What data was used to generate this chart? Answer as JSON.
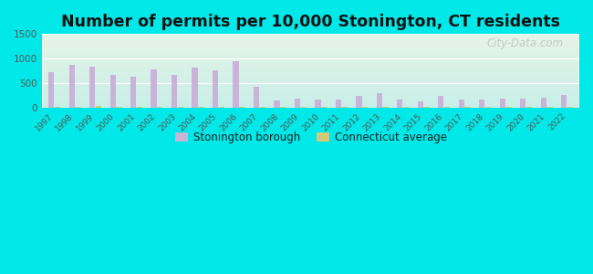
{
  "title": "Number of permits per 10,000 Stonington, CT residents",
  "years": [
    1997,
    1998,
    1999,
    2000,
    2001,
    2002,
    2003,
    2004,
    2005,
    2006,
    2007,
    2008,
    2009,
    2010,
    2011,
    2012,
    2013,
    2014,
    2015,
    2016,
    2017,
    2018,
    2019,
    2020,
    2021,
    2022
  ],
  "stonington_values": [
    730,
    870,
    840,
    660,
    620,
    770,
    660,
    820,
    760,
    950,
    430,
    140,
    185,
    170,
    170,
    240,
    300,
    160,
    120,
    240,
    165,
    165,
    175,
    185,
    200,
    255
  ],
  "ct_avg_values": [
    20,
    20,
    30,
    20,
    20,
    20,
    20,
    20,
    20,
    15,
    15,
    10,
    10,
    10,
    10,
    10,
    10,
    10,
    10,
    10,
    10,
    10,
    10,
    10,
    10,
    10
  ],
  "stonington_color": "#c9b3d9",
  "ct_avg_color": "#d4c97a",
  "ylim": [
    0,
    1500
  ],
  "yticks": [
    0,
    500,
    1000,
    1500
  ],
  "bg_color_outer": "#00e8e8",
  "bg_color_plot_top": "#e6f4e6",
  "bg_color_plot_bottom": "#c8eee8",
  "title_fontsize": 12.5,
  "legend_labels": [
    "Stonington borough",
    "Connecticut average"
  ],
  "watermark": "City-Data.com"
}
